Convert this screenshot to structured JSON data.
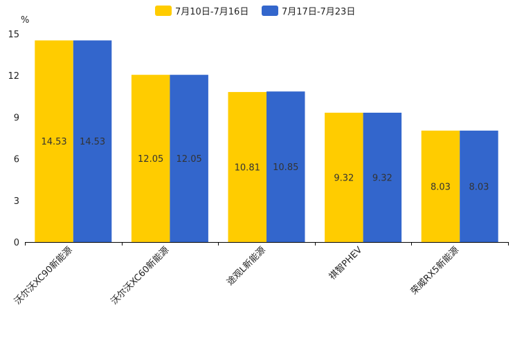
{
  "chart_data": {
    "type": "bar",
    "unit_label": "%",
    "ylim": [
      0,
      15
    ],
    "yticks": [
      0,
      3,
      6,
      9,
      12,
      15
    ],
    "categories": [
      "沃尔沃XC90新能源",
      "沃尔沃XC60新能源",
      "途观L新能源",
      "祺智PHEV",
      "荣威RX5新能源"
    ],
    "series": [
      {
        "name": "7月10日-7月16日",
        "color": "#FFCC00",
        "values": [
          14.53,
          12.05,
          10.81,
          9.32,
          8.03
        ]
      },
      {
        "name": "7月17日-7月23日",
        "color": "#3366CC",
        "values": [
          14.53,
          12.05,
          10.85,
          9.32,
          8.03
        ]
      }
    ],
    "legend_position": "top-center",
    "grid": false
  }
}
